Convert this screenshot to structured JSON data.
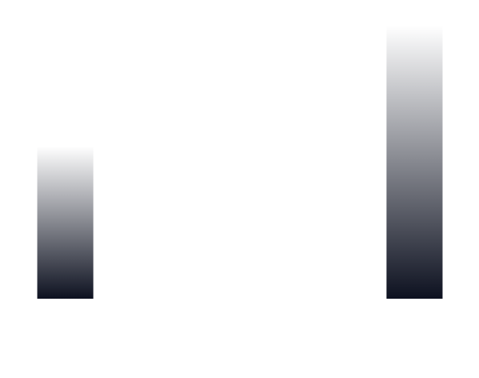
{
  "chart_data": {
    "type": "bar",
    "categories": [
      "",
      "",
      "",
      "",
      ""
    ],
    "values": [
      190,
      0,
      0,
      0,
      340
    ],
    "ylim": [
      0,
      350
    ],
    "grid": false,
    "legend": "none",
    "colors": {
      "bar_bottom": "#0d1120",
      "bar_top": "#ffffff",
      "background": "#ffffff"
    }
  }
}
